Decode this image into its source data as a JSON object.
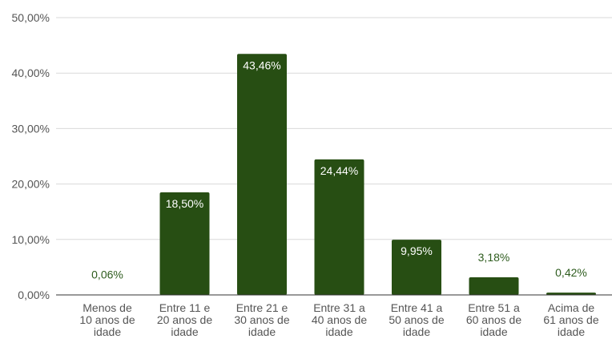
{
  "chart_data": {
    "type": "bar",
    "title": "",
    "xlabel": "",
    "ylabel": "",
    "ylim": [
      0,
      50
    ],
    "y_ticks": [
      "0,00%",
      "10,00%",
      "20,00%",
      "30,00%",
      "40,00%",
      "50,00%"
    ],
    "y_tick_values": [
      0,
      10,
      20,
      30,
      40,
      50
    ],
    "categories": [
      [
        "Menos de",
        "10 anos de",
        "idade"
      ],
      [
        "Entre 11 e",
        "20 anos de",
        "idade"
      ],
      [
        "Entre 21 e",
        "30 anos de",
        "idade"
      ],
      [
        "Entre 31 a",
        "40 anos de",
        "idade"
      ],
      [
        "Entre 41 a",
        "50 anos de",
        "idade"
      ],
      [
        "Entre 51 a",
        "60 anos de",
        "idade"
      ],
      [
        "Acima de",
        "61 anos de",
        "idade"
      ]
    ],
    "values": [
      0.06,
      18.5,
      43.46,
      24.44,
      9.95,
      3.18,
      0.42
    ],
    "data_labels": [
      "0,06%",
      "18,50%",
      "43,46%",
      "24,44%",
      "9,95%",
      "3,18%",
      "0,42%"
    ],
    "bar_color": "#274e13",
    "outside_label_color": "#2e5c1e",
    "grid": true,
    "legend": "none"
  }
}
